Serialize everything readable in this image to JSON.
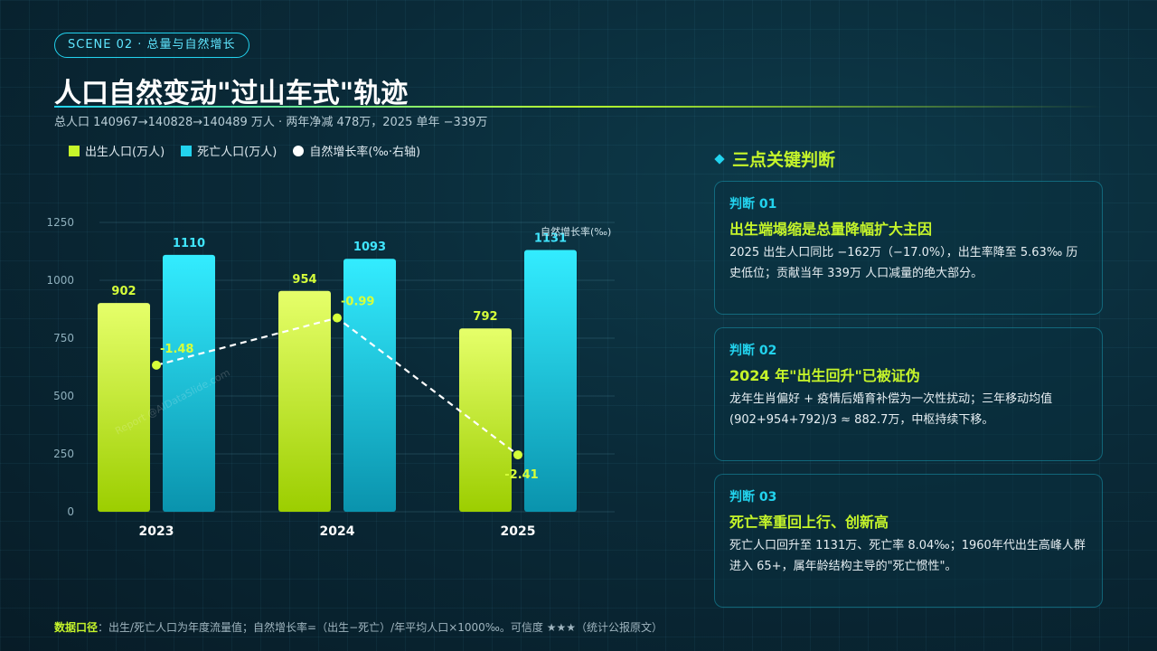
{
  "header": {
    "scene": "SCENE 02 · 总量与自然增长",
    "title": "人口自然变动\"过山车式\"轨迹",
    "subtitle": "总人口 140967→140828→140489 万人 · 两年净减 478万，2025 单年 −339万"
  },
  "legend": {
    "birth": "出生人口(万人)",
    "death": "死亡人口(万人)",
    "rate": "自然增长率(‰·右轴)"
  },
  "watermark": "Report @AIDataSlide.com",
  "chart_data": {
    "type": "bar",
    "categories": [
      "2023",
      "2024",
      "2025"
    ],
    "series": [
      {
        "name": "出生人口(万人)",
        "values": [
          902,
          954,
          792
        ],
        "color": "#c6f52a"
      },
      {
        "name": "死亡人口(万人)",
        "values": [
          1110,
          1093,
          1131
        ],
        "color": "#22d3ee"
      },
      {
        "name": "自然增长率(‰·右轴)",
        "type": "line",
        "axis": "right",
        "values": [
          -1.48,
          -0.99,
          -2.41
        ],
        "color": "#ffffff"
      }
    ],
    "y_ticks": [
      "0",
      "250",
      "500",
      "750",
      "1000",
      "1250"
    ],
    "ylim": [
      0,
      1250
    ],
    "y2label": "自然增长率(‰)",
    "y2lim": [
      -3,
      0
    ],
    "grid": true
  },
  "panel": {
    "title": "三点关键判断",
    "cards": [
      {
        "tag": "判断 01",
        "head": "出生端塌缩是总量降幅扩大主因",
        "body": "2025 出生人口同比 −162万（−17.0%），出生率降至 5.63‰ 历史低位；贡献当年 339万 人口减量的绝大部分。"
      },
      {
        "tag": "判断 02",
        "head": "2024 年\"出生回升\"已被证伪",
        "body": "龙年生肖偏好 + 疫情后婚育补偿为一次性扰动；三年移动均值 (902+954+792)/3 ≈ 882.7万，中枢持续下移。"
      },
      {
        "tag": "判断 03",
        "head": "死亡率重回上行、创新高",
        "body": "死亡人口回升至 1131万、死亡率 8.04‰；1960年代出生高峰人群进入 65+，属年龄结构主导的\"死亡惯性\"。"
      }
    ]
  },
  "footnote": {
    "label": "数据口径",
    "text": "：出生/死亡人口为年度流量值；自然增长率=（出生−死亡）/年平均人口×1000‰。可信度 ★★★（统计公报原文）"
  }
}
